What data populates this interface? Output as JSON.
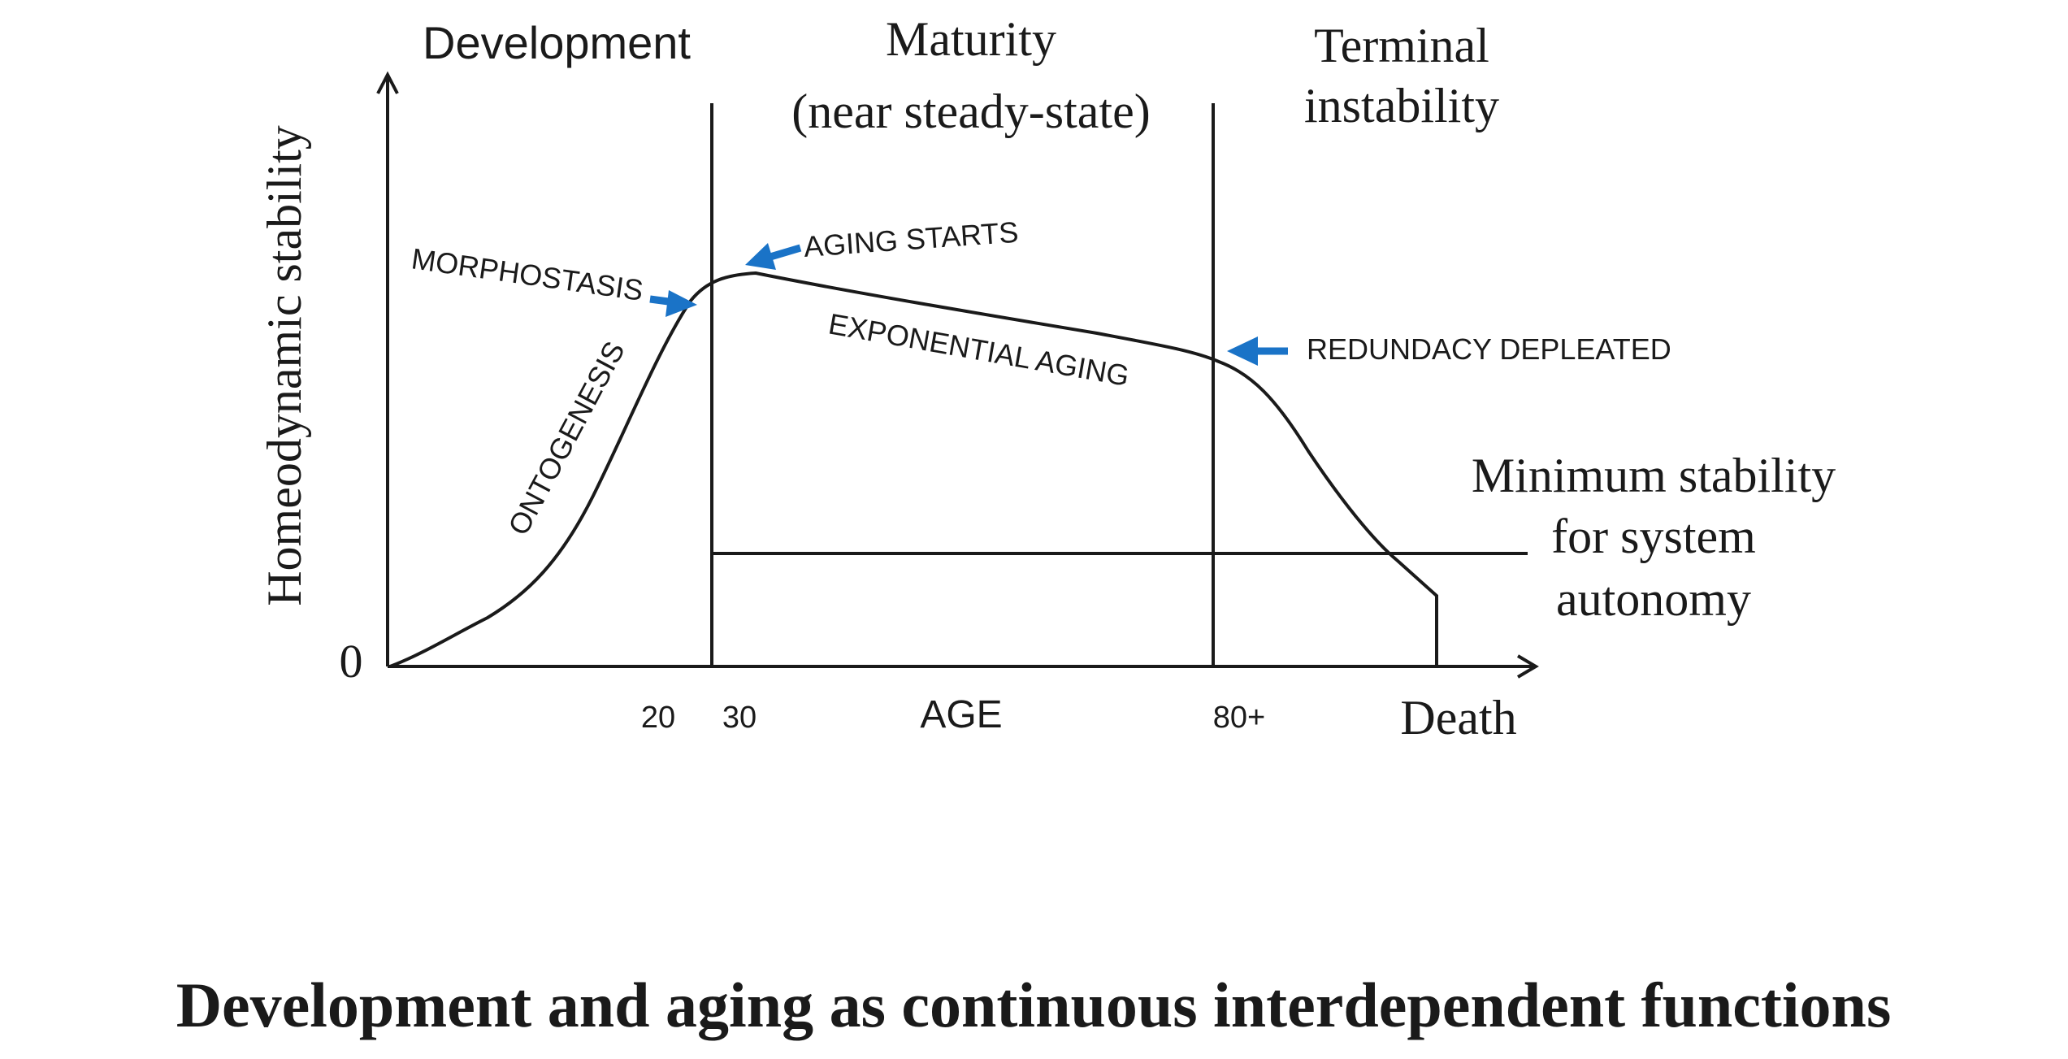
{
  "phases": {
    "development": "Development",
    "maturity_line1": "Maturity",
    "maturity_line2": "(near steady-state)",
    "terminal_line1": "Terminal",
    "terminal_line2": "instability"
  },
  "axes": {
    "y_label": "Homeodynamic stability",
    "origin_label": "0",
    "x_label": "AGE",
    "x_ticks": [
      "20",
      "30",
      "80+",
      "Death"
    ]
  },
  "annotations": {
    "morphostasis": "MORPHOSTASIS",
    "aging_starts": "AGING STARTS",
    "ontogenesis": "ONTOGENESIS",
    "exponential_aging": "EXPONENTIAL AGING",
    "redundancy_depleted": "REDUNDACY DEPLEATED"
  },
  "threshold": {
    "line1": "Minimum stability",
    "line2": "for system",
    "line3": "autonomy"
  },
  "caption": "Development and aging as continuous interdependent functions",
  "colors": {
    "arrow": "#1a73c7",
    "ink": "#1a1a1a"
  }
}
